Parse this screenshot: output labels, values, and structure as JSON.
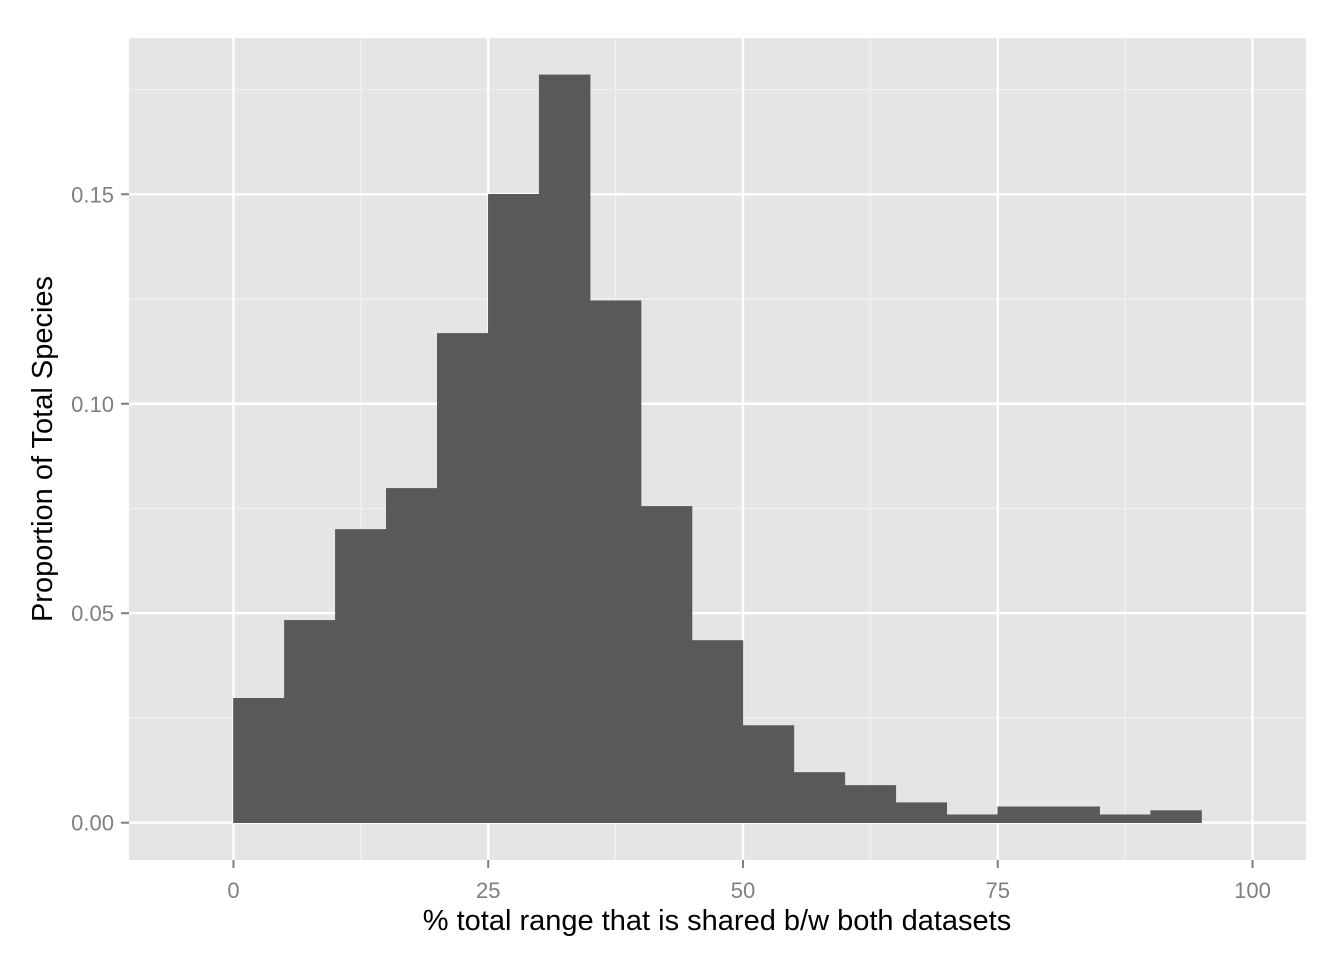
{
  "chart_data": {
    "type": "bar",
    "subtype": "histogram",
    "title": "",
    "xlabel": "% total range that is shared b/w both datasets",
    "ylabel": "Proportion of Total Species",
    "xlim": [
      -10.25,
      105.25
    ],
    "ylim": [
      -0.0089,
      0.1873
    ],
    "xticks": [
      0,
      25,
      50,
      75,
      100
    ],
    "xtick_labels": [
      "0",
      "25",
      "50",
      "75",
      "100"
    ],
    "yticks": [
      0.0,
      0.05,
      0.1,
      0.15
    ],
    "ytick_labels": [
      "0.00",
      "0.05",
      "0.10",
      "0.15"
    ],
    "grid": true,
    "legend": "none",
    "colors": {
      "panel": "#e5e5e5",
      "grid_major": "#ffffff",
      "grid_minor": "#f2f2f2",
      "bar": "#595959",
      "tick_label": "#7f7f7f"
    },
    "bin_width": 5,
    "bins": [
      {
        "x0": 0,
        "x1": 5,
        "value": 0.0297
      },
      {
        "x0": 5,
        "x1": 10,
        "value": 0.0483
      },
      {
        "x0": 10,
        "x1": 15,
        "value": 0.07
      },
      {
        "x0": 15,
        "x1": 20,
        "value": 0.0798
      },
      {
        "x0": 20,
        "x1": 25,
        "value": 0.1168
      },
      {
        "x0": 25,
        "x1": 30,
        "value": 0.15
      },
      {
        "x0": 30,
        "x1": 35,
        "value": 0.1785
      },
      {
        "x0": 35,
        "x1": 40,
        "value": 0.1246
      },
      {
        "x0": 40,
        "x1": 45,
        "value": 0.0755
      },
      {
        "x0": 45,
        "x1": 50,
        "value": 0.0435
      },
      {
        "x0": 50,
        "x1": 55,
        "value": 0.0232
      },
      {
        "x0": 55,
        "x1": 60,
        "value": 0.012
      },
      {
        "x0": 60,
        "x1": 65,
        "value": 0.0089
      },
      {
        "x0": 65,
        "x1": 70,
        "value": 0.0048
      },
      {
        "x0": 70,
        "x1": 75,
        "value": 0.0019
      },
      {
        "x0": 75,
        "x1": 80,
        "value": 0.0038
      },
      {
        "x0": 80,
        "x1": 85,
        "value": 0.0038
      },
      {
        "x0": 85,
        "x1": 90,
        "value": 0.0019
      },
      {
        "x0": 90,
        "x1": 95,
        "value": 0.0029
      }
    ]
  }
}
